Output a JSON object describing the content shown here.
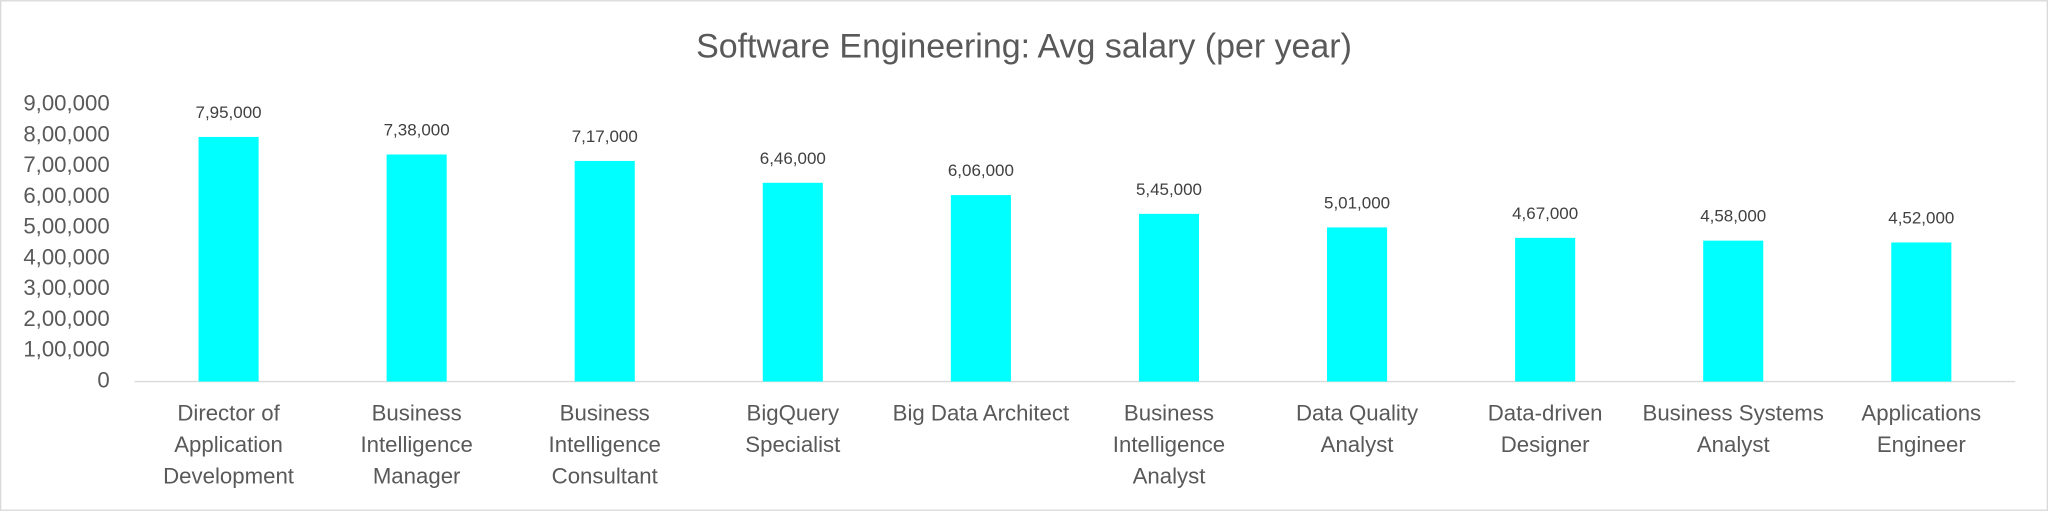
{
  "chart_data": {
    "type": "bar",
    "title": "Software Engineering: Avg salary (per year)",
    "categories": [
      "Director of Application Development",
      "Business Intelligence Manager",
      "Business Intelligence Consultant",
      "BigQuery Specialist",
      "Big Data Architect",
      "Business Intelligence Analyst",
      "Data Quality Analyst",
      "Data-driven Designer",
      "Business Systems Analyst",
      "Applications Engineer"
    ],
    "values": [
      795000,
      738000,
      717000,
      646000,
      606000,
      545000,
      501000,
      467000,
      458000,
      452000
    ],
    "value_labels": [
      "7,95,000",
      "7,38,000",
      "7,17,000",
      "6,46,000",
      "6,06,000",
      "5,45,000",
      "5,01,000",
      "4,67,000",
      "4,58,000",
      "4,52,000"
    ],
    "color": "#00ffff",
    "ylim": [
      0,
      900000
    ],
    "yticks": [
      0,
      {
        "value": 100000,
        "label": "1,00,000"
      },
      {
        "value": 200000,
        "label": "2,00,000"
      },
      {
        "value": 300000,
        "label": "3,00,000"
      },
      {
        "value": 400000,
        "label": "4,00,000"
      },
      {
        "value": 500000,
        "label": "5,00,000"
      },
      {
        "value": 600000,
        "label": "6,00,000"
      },
      {
        "value": 700000,
        "label": "7,00,000"
      },
      {
        "value": 800000,
        "label": "8,00,000"
      },
      {
        "value": 900000,
        "label": "9,00,000"
      }
    ],
    "grid": false
  }
}
